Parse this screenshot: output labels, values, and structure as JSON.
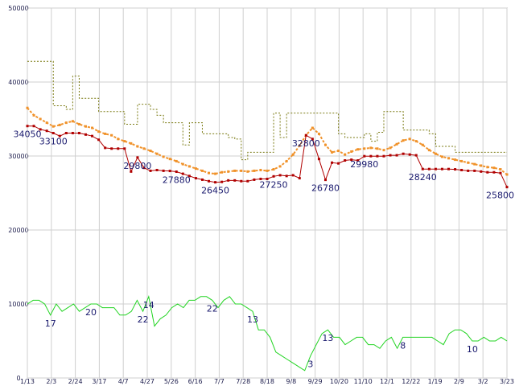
{
  "chart_data": {
    "type": "line",
    "title": "",
    "xlabel": "",
    "ylabel": "",
    "ylim": [
      0,
      50000
    ],
    "grid": true,
    "y_ticks": [
      "0",
      "10000",
      "20000",
      "30000",
      "40000",
      "50000"
    ],
    "x_ticks": [
      "1/13",
      "2/3",
      "2/24",
      "3/17",
      "4/7",
      "4/27",
      "5/26",
      "6/16",
      "7/7",
      "7/28",
      "8/18",
      "9/8",
      "9/29",
      "10/20",
      "11/10",
      "12/1",
      "12/22",
      "1/19",
      "2/9",
      "3/2",
      "3/23"
    ],
    "series": [
      {
        "key": "high",
        "color": "#7a7a12",
        "style": "dotted-step",
        "values": [
          42800,
          42800,
          42800,
          42800,
          36800,
          36800,
          36300,
          40800,
          37800,
          37800,
          37800,
          36000,
          36000,
          36000,
          36000,
          34300,
          34300,
          37000,
          37000,
          36300,
          35500,
          34500,
          34500,
          34500,
          31500,
          34500,
          34500,
          33000,
          33000,
          33000,
          33000,
          32500,
          32300,
          29500,
          30500,
          30500,
          30500,
          30500,
          35800,
          32500,
          35800,
          35800,
          35800,
          35800,
          35800,
          35800,
          35800,
          35800,
          33000,
          32500,
          32500,
          32500,
          33000,
          32000,
          33200,
          36000,
          36000,
          36000,
          33500,
          33500,
          33500,
          33500,
          33000,
          31300,
          31300,
          31300,
          30500,
          30500,
          30500,
          30500,
          30500,
          30500,
          30500,
          30500,
          30500
        ]
      },
      {
        "key": "average",
        "color": "#f0922a",
        "style": "dotted",
        "values": [
          36500,
          35500,
          35000,
          34500,
          34000,
          34200,
          34500,
          34700,
          34300,
          34000,
          33800,
          33300,
          33000,
          32800,
          32300,
          32000,
          31700,
          31300,
          31000,
          30700,
          30300,
          29900,
          29600,
          29300,
          28900,
          28600,
          28300,
          28000,
          27700,
          27600,
          27800,
          27900,
          28000,
          28000,
          27900,
          28000,
          28100,
          28000,
          28200,
          28600,
          29300,
          30200,
          31400,
          32800,
          33800,
          33000,
          31500,
          30500,
          30700,
          30200,
          30600,
          30900,
          31000,
          31100,
          31000,
          30800,
          31100,
          31600,
          32100,
          32300,
          32000,
          31500,
          30800,
          30300,
          29900,
          29700,
          29500,
          29300,
          29100,
          28900,
          28700,
          28500,
          28400,
          28200,
          27500
        ]
      },
      {
        "key": "close",
        "color": "#b00000",
        "style": "solid-points",
        "values": [
          34050,
          34050,
          33600,
          33400,
          33100,
          32700,
          33100,
          33100,
          33100,
          32900,
          32700,
          32200,
          31100,
          31000,
          31000,
          31000,
          27900,
          29800,
          28400,
          28000,
          28100,
          28000,
          27980,
          27880,
          27600,
          27300,
          27000,
          26800,
          26600,
          26450,
          26500,
          26700,
          26700,
          26600,
          26600,
          26800,
          26900,
          26900,
          27250,
          27400,
          27300,
          27400,
          27000,
          32800,
          32300,
          29600,
          26780,
          29100,
          29000,
          29400,
          29500,
          29400,
          29980,
          29980,
          29980,
          29980,
          30100,
          30100,
          30300,
          30200,
          30100,
          28240,
          28240,
          28240,
          28240,
          28240,
          28200,
          28100,
          28000,
          28000,
          27900,
          27800,
          27800,
          27700,
          25800
        ]
      },
      {
        "key": "volume",
        "color": "#22d422",
        "style": "solid",
        "scale": "volume",
        "values": [
          10000,
          10500,
          10500,
          10000,
          8500,
          10000,
          9000,
          9500,
          10000,
          9000,
          9500,
          10000,
          10000,
          9500,
          9500,
          9500,
          8500,
          8500,
          9000,
          10500,
          9000,
          11000,
          7000,
          8000,
          8500,
          9500,
          10000,
          9500,
          10500,
          10500,
          11000,
          11000,
          10500,
          9500,
          10500,
          11000,
          10000,
          10000,
          9500,
          9000,
          6500,
          6500,
          5500,
          3500,
          3000,
          2500,
          2000,
          1500,
          1000,
          3000,
          4500,
          6000,
          6500,
          5500,
          5500,
          4500,
          5000,
          5500,
          5500,
          4500,
          4500,
          4000,
          5000,
          5500,
          4000,
          5500,
          5500,
          5500,
          5500,
          5500,
          5500,
          5000,
          4500,
          6000,
          6500,
          6500,
          6000,
          5000,
          5000,
          5500,
          5000,
          5000,
          5500,
          5000
        ]
      }
    ],
    "annotations": [
      {
        "series": "close",
        "index": 0,
        "text": "34050"
      },
      {
        "series": "close",
        "index": 4,
        "text": "33100"
      },
      {
        "series": "close",
        "index": 17,
        "text": "29800"
      },
      {
        "series": "close",
        "index": 23,
        "text": "27880"
      },
      {
        "series": "close",
        "index": 29,
        "text": "26450"
      },
      {
        "series": "close",
        "index": 38,
        "text": "27250"
      },
      {
        "series": "close",
        "index": 43,
        "text": "32800"
      },
      {
        "series": "close",
        "index": 46,
        "text": "26780"
      },
      {
        "series": "close",
        "index": 52,
        "text": "29980"
      },
      {
        "series": "close",
        "index": 61,
        "text": "28240"
      },
      {
        "series": "close",
        "index": 74,
        "text": "25800"
      },
      {
        "series": "volume",
        "frac": 0.05,
        "text": "17"
      },
      {
        "series": "volume",
        "frac": 0.13,
        "text": "20"
      },
      {
        "series": "volume",
        "frac": 0.24,
        "text": "22"
      },
      {
        "series": "volume",
        "frac": 0.255,
        "text": "14"
      },
      {
        "series": "volume",
        "frac": 0.39,
        "text": "22"
      },
      {
        "series": "volume",
        "frac": 0.47,
        "text": "13"
      },
      {
        "series": "volume",
        "frac": 0.595,
        "text": "3"
      },
      {
        "series": "volume",
        "frac": 0.63,
        "text": "13"
      },
      {
        "series": "volume",
        "frac": 0.78,
        "text": "8"
      },
      {
        "series": "volume",
        "frac": 0.925,
        "text": "10"
      }
    ]
  }
}
